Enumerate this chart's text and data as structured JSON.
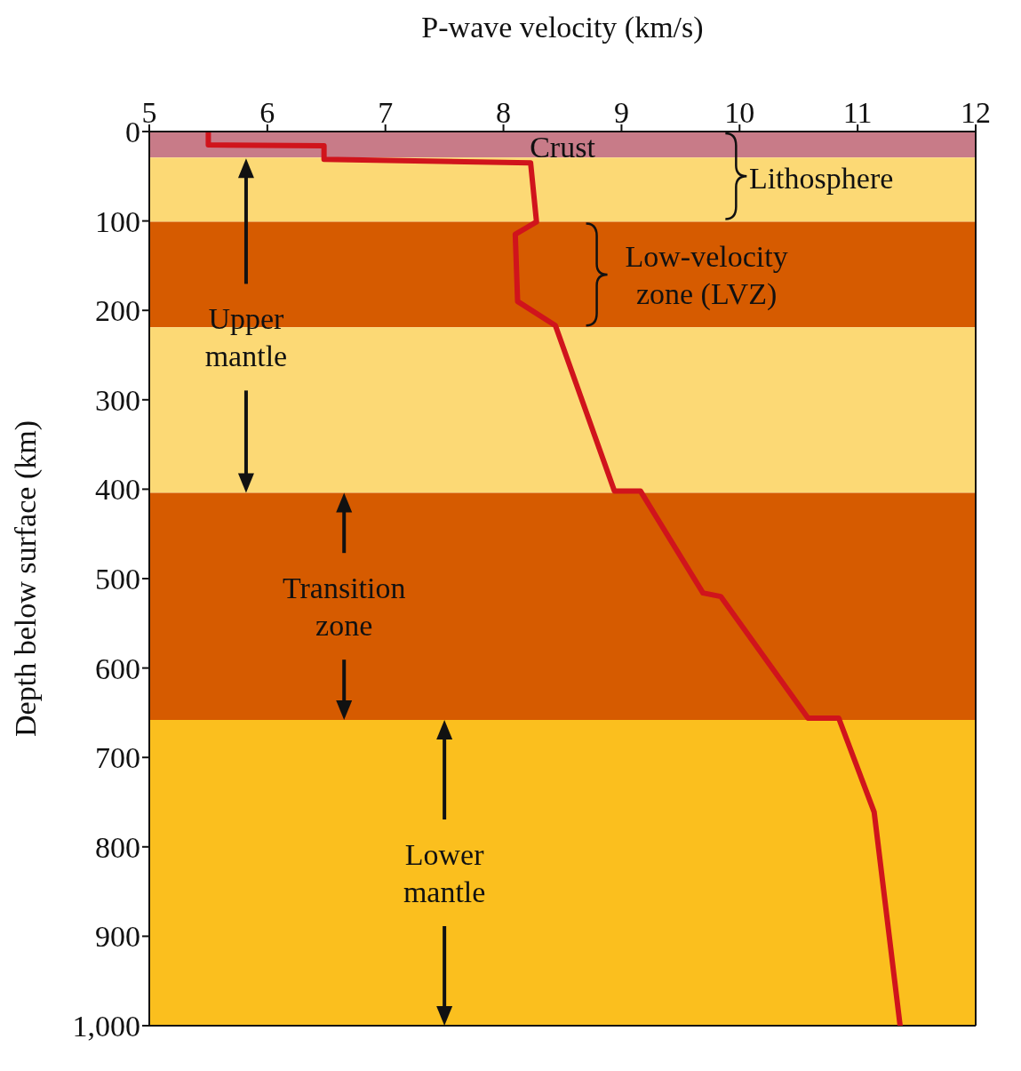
{
  "chart_data": {
    "type": "line",
    "xlabel": "P-wave velocity (km/s)",
    "ylabel": "Depth below surface (km)",
    "xlim": [
      5,
      12
    ],
    "xticks": [
      5,
      6,
      7,
      8,
      9,
      10,
      11,
      12
    ],
    "ylim": [
      1000,
      0
    ],
    "yticks": [
      0,
      100,
      200,
      300,
      400,
      500,
      600,
      700,
      800,
      900,
      {
        "value": 1000,
        "label": "1,000"
      }
    ],
    "series": [
      {
        "color": "#d0141c",
        "x": [
          5.5,
          5.5,
          6.48,
          6.48,
          8.23,
          8.28,
          8.1,
          8.12,
          8.44,
          8.94,
          9.16,
          9.69,
          9.84,
          10.58,
          10.84,
          11.14,
          11.36
        ],
        "values": [
          0,
          15,
          16,
          31,
          35,
          101,
          115,
          190,
          217,
          402,
          402,
          516,
          520,
          656,
          656,
          761,
          1000
        ]
      }
    ],
    "bands": [
      {
        "axis": "y",
        "from": 0,
        "to": 29,
        "label": "Crust",
        "color": "#c87b88"
      },
      {
        "axis": "y",
        "from": 29,
        "to": 101,
        "color": "#fcd975"
      },
      {
        "axis": "y",
        "from": 101,
        "to": 219,
        "label": "Low-velocity zone (LVZ)",
        "color": "#d65b00"
      },
      {
        "axis": "y",
        "from": 219,
        "to": 404,
        "color": "#fcd975"
      },
      {
        "axis": "y",
        "from": 404,
        "to": 658,
        "label": "Transition zone",
        "color": "#d65b00"
      },
      {
        "axis": "y",
        "from": 658,
        "to": 1000,
        "label": "Lower mantle",
        "color": "#fbbf1e"
      }
    ],
    "annotations": [
      "Lithosphere",
      "Upper mantle"
    ],
    "grid": false,
    "marker": "none",
    "line_style": "solid"
  }
}
